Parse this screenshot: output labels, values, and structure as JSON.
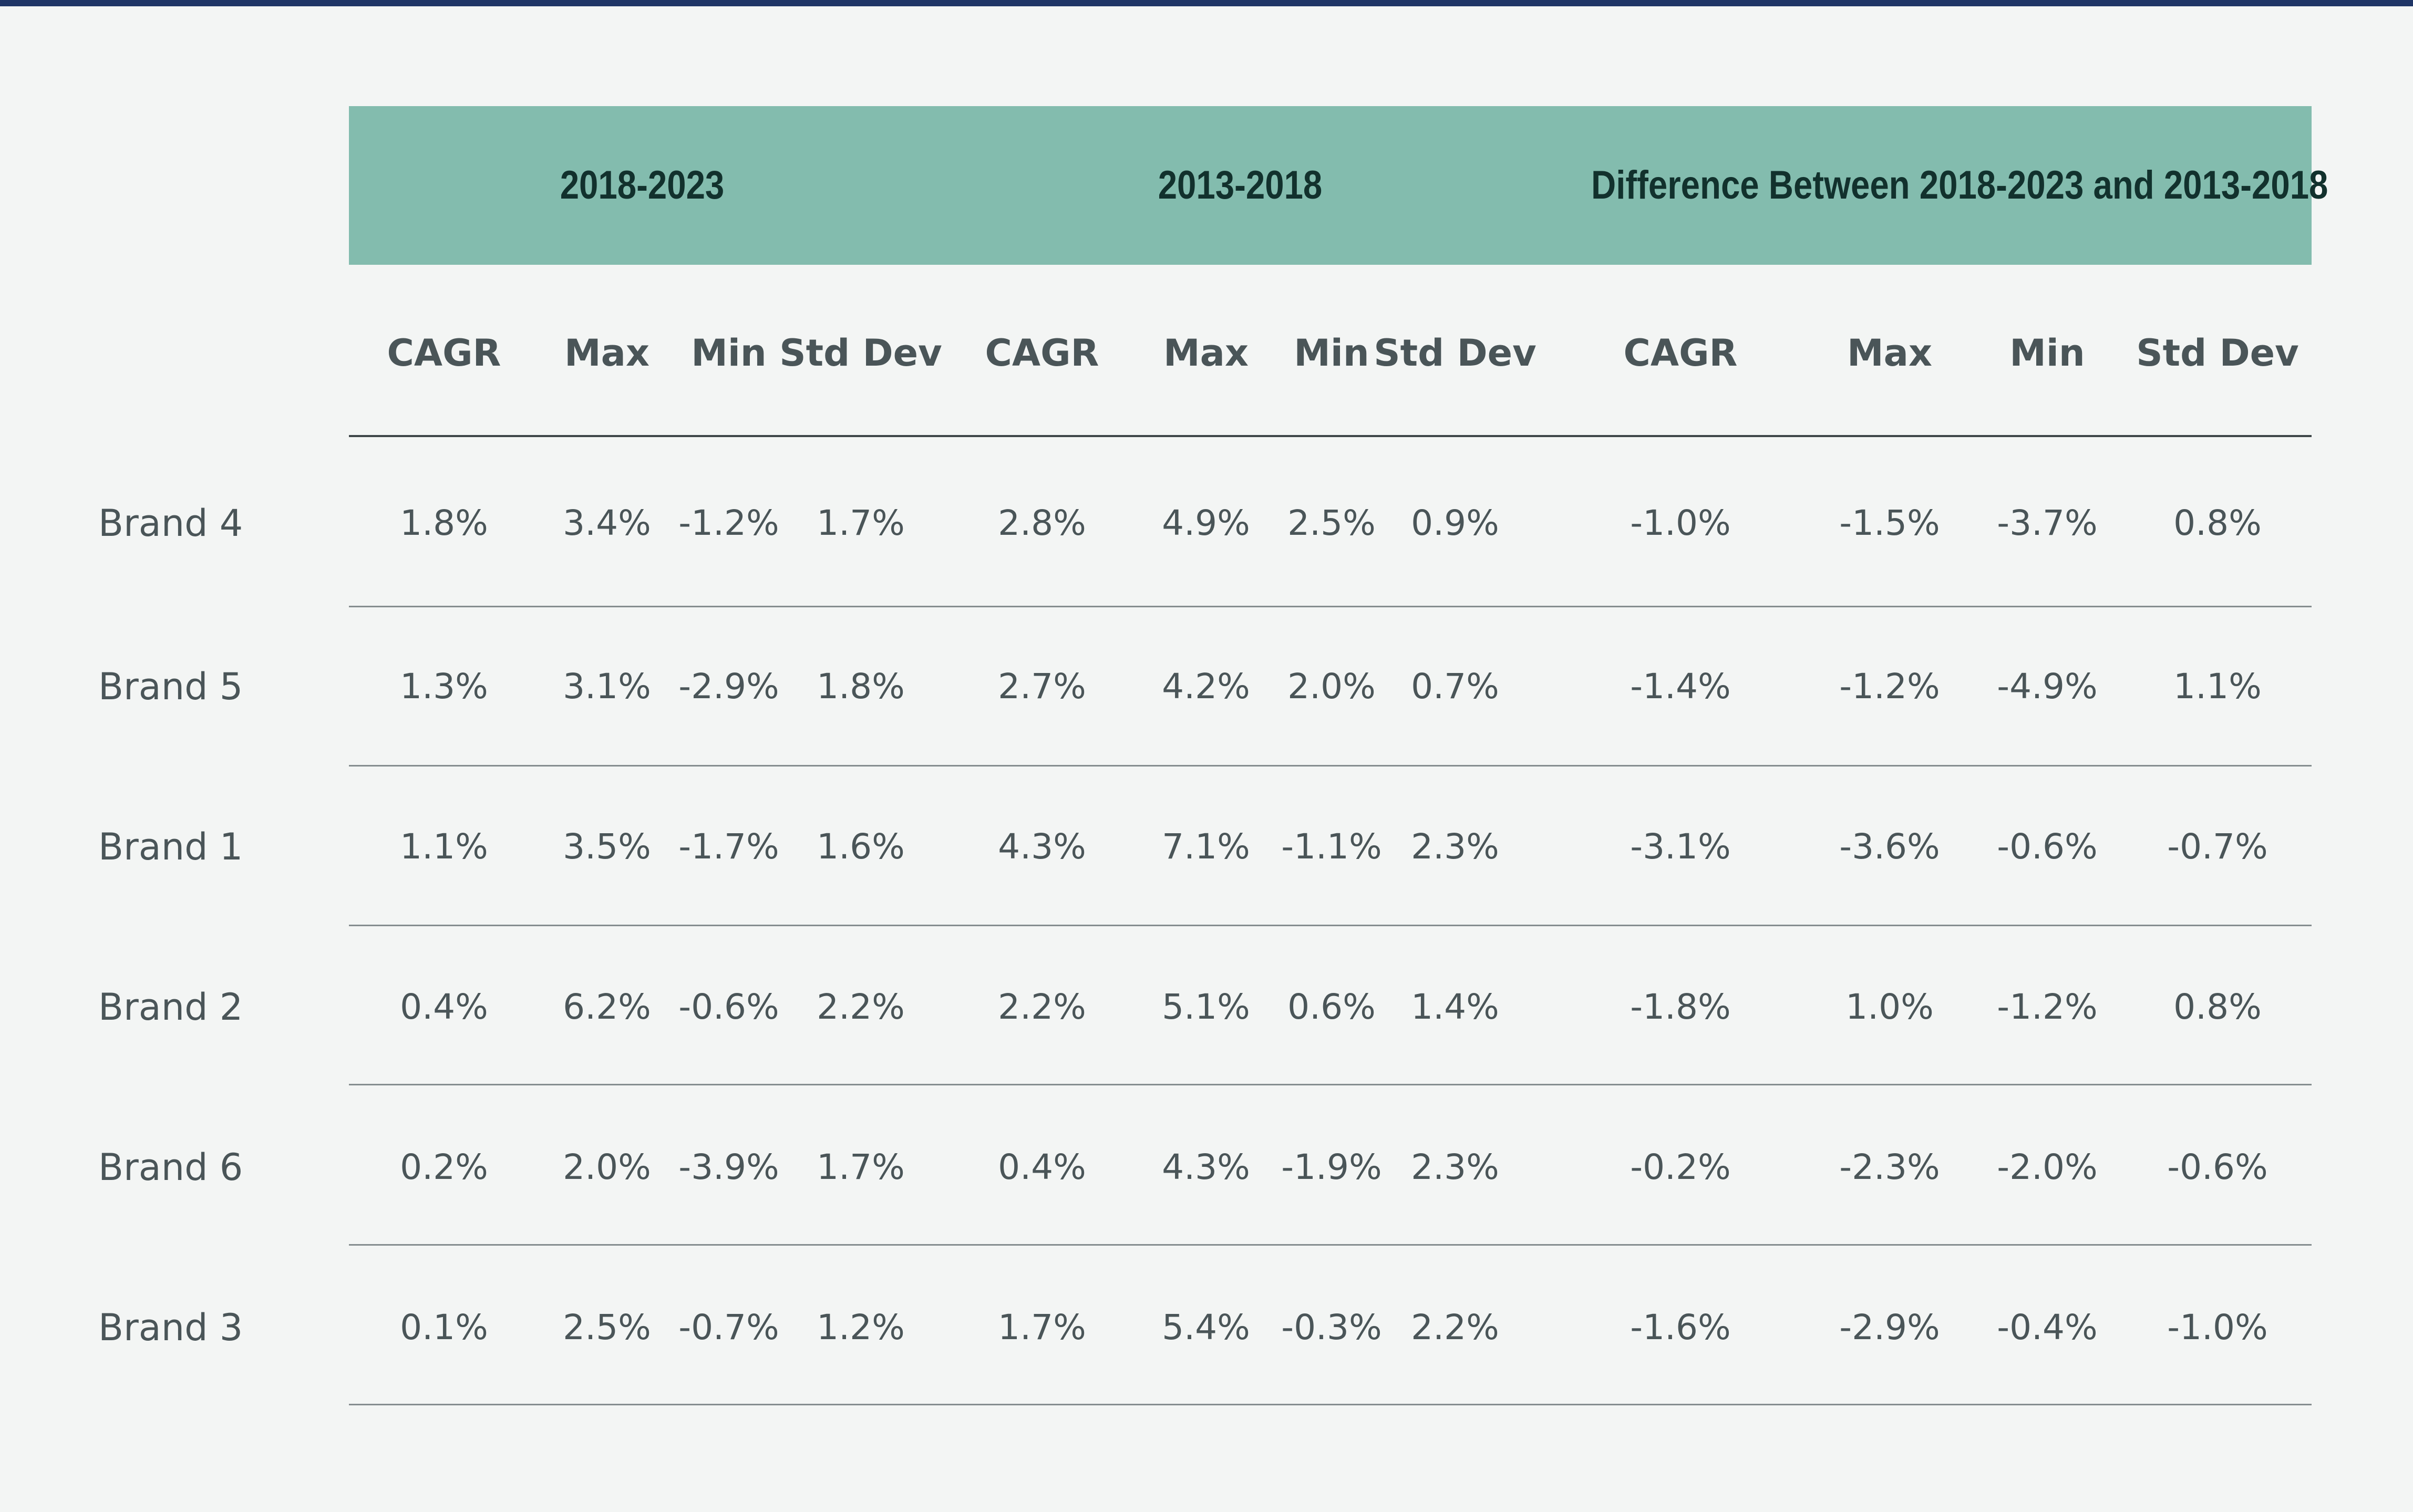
{
  "chart_data": {
    "type": "table",
    "column_groups": [
      "2018-2023",
      "2013-2018",
      "Difference Between 2018-2023 and 2013-2018"
    ],
    "sub_columns": [
      "CAGR",
      "Max",
      "Min",
      "Std Dev"
    ],
    "rows": [
      {
        "label": "Brand 4",
        "values": [
          "1.8%",
          "3.4%",
          "-1.2%",
          "1.7%",
          "2.8%",
          "4.9%",
          "2.5%",
          "0.9%",
          "-1.0%",
          "-1.5%",
          "-3.7%",
          "0.8%"
        ]
      },
      {
        "label": "Brand 5",
        "values": [
          "1.3%",
          "3.1%",
          "-2.9%",
          "1.8%",
          "2.7%",
          "4.2%",
          "2.0%",
          "0.7%",
          "-1.4%",
          "-1.2%",
          "-4.9%",
          "1.1%"
        ]
      },
      {
        "label": "Brand 1",
        "values": [
          "1.1%",
          "3.5%",
          "-1.7%",
          "1.6%",
          "4.3%",
          "7.1%",
          "-1.1%",
          "2.3%",
          "-3.1%",
          "-3.6%",
          "-0.6%",
          "-0.7%"
        ]
      },
      {
        "label": "Brand 2",
        "values": [
          "0.4%",
          "6.2%",
          "-0.6%",
          "2.2%",
          "2.2%",
          "5.1%",
          "0.6%",
          "1.4%",
          "-1.8%",
          "1.0%",
          "-1.2%",
          "0.8%"
        ]
      },
      {
        "label": "Brand 6",
        "values": [
          "0.2%",
          "2.0%",
          "-3.9%",
          "1.7%",
          "0.4%",
          "4.3%",
          "-1.9%",
          "2.3%",
          "-0.2%",
          "-2.3%",
          "-2.0%",
          "-0.6%"
        ]
      },
      {
        "label": "Brand 3",
        "values": [
          "0.1%",
          "2.5%",
          "-0.7%",
          "1.2%",
          "1.7%",
          "5.4%",
          "-0.3%",
          "2.2%",
          "-1.6%",
          "-2.9%",
          "-0.4%",
          "-1.0%"
        ]
      }
    ],
    "colors": {
      "header_band": "#83bcae",
      "top_rule": "#1f3566",
      "background": "#f3f5f4",
      "text": "#4a5558"
    }
  }
}
